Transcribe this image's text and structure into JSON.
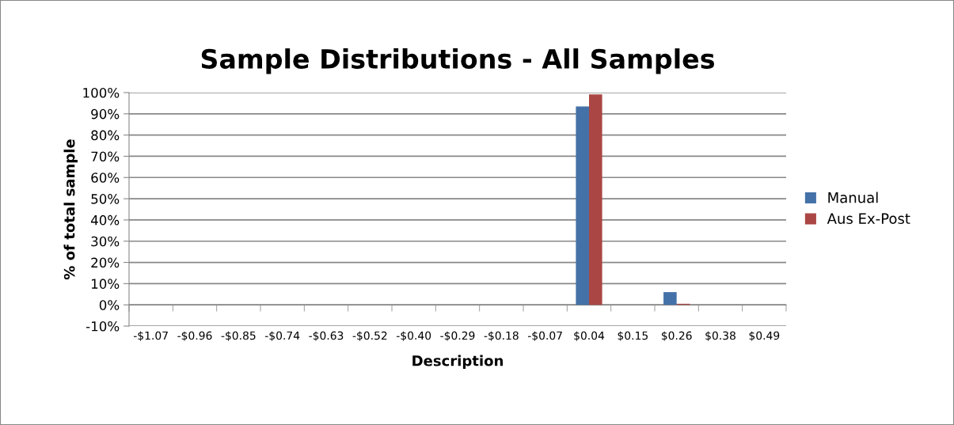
{
  "chart_data": {
    "type": "bar",
    "title": "Sample Distributions - All Samples",
    "xlabel": "Description",
    "ylabel": "% of total sample",
    "categories": [
      "-$1.07",
      "-$0.96",
      "-$0.85",
      "-$0.74",
      "-$0.63",
      "-$0.52",
      "-$0.40",
      "-$0.29",
      "-$0.18",
      "-$0.07",
      "$0.04",
      "$0.15",
      "$0.26",
      "$0.38",
      "$0.49"
    ],
    "series": [
      {
        "name": "Manual",
        "color": "#4472a8",
        "values": [
          0,
          0,
          0,
          0,
          0,
          0,
          0,
          0,
          0,
          0,
          93.5,
          0,
          6,
          0,
          0
        ]
      },
      {
        "name": "Aus Ex-Post",
        "color": "#aa4744",
        "values": [
          0,
          0,
          0,
          0,
          0,
          0,
          0,
          0,
          0,
          0,
          99.2,
          0,
          0.5,
          0,
          0
        ]
      }
    ],
    "ylim": [
      -10,
      100
    ],
    "yticks": [
      {
        "value": -10,
        "label": "-10%"
      },
      {
        "value": 0,
        "label": "0%"
      },
      {
        "value": 10,
        "label": "10%"
      },
      {
        "value": 20,
        "label": "20%"
      },
      {
        "value": 30,
        "label": "30%"
      },
      {
        "value": 40,
        "label": "40%"
      },
      {
        "value": 50,
        "label": "50%"
      },
      {
        "value": 60,
        "label": "60%"
      },
      {
        "value": 70,
        "label": "70%"
      },
      {
        "value": 80,
        "label": "80%"
      },
      {
        "value": 90,
        "label": "90%"
      },
      {
        "value": 100,
        "label": "100%"
      }
    ],
    "grid": "y",
    "legend": "right"
  }
}
